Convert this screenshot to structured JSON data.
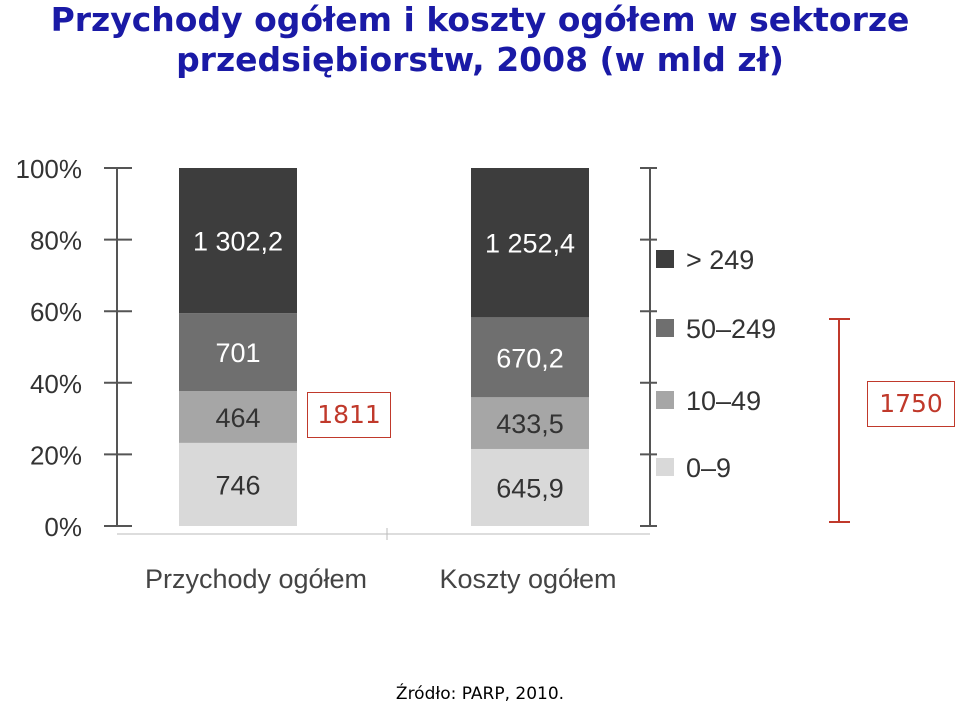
{
  "title_line1": "Przychody ogółem i koszty ogółem w sektorze",
  "title_line2": "przedsiębiorstw, 2008 (w mld zł)",
  "source": "Źródło: PARP, 2010.",
  "chart_data": {
    "type": "bar",
    "stacked": "percent",
    "categories": [
      "Przychody ogółem",
      "Koszty ogółem"
    ],
    "series": [
      {
        "name": "0–9",
        "values": [
          746,
          645.9
        ],
        "labels": [
          "746",
          "645,9"
        ],
        "color": "#d9d9d9"
      },
      {
        "name": "10–49",
        "values": [
          464,
          433.5
        ],
        "labels": [
          "464",
          "433,5"
        ],
        "color": "#a6a6a6"
      },
      {
        "name": "50–249",
        "values": [
          701,
          670.2
        ],
        "labels": [
          "701",
          "670,2"
        ],
        "color": "#6f6f6f"
      },
      {
        "name": "> 249",
        "values": [
          1302.2,
          1252.4
        ],
        "labels": [
          "1 302,2",
          "1 252,4"
        ],
        "color": "#3d3d3d"
      }
    ],
    "yticks": [
      "0%",
      "20%",
      "40%",
      "60%",
      "80%",
      "100%"
    ],
    "ylim": [
      0,
      100
    ],
    "grid": false,
    "legend_position": "right",
    "legend_order": [
      "> 249",
      "50–249",
      "10–49",
      "0–9"
    ],
    "annotations": [
      {
        "text": "1811",
        "color": "#c0392b"
      },
      {
        "text": "1750",
        "color": "#c0392b"
      }
    ]
  }
}
